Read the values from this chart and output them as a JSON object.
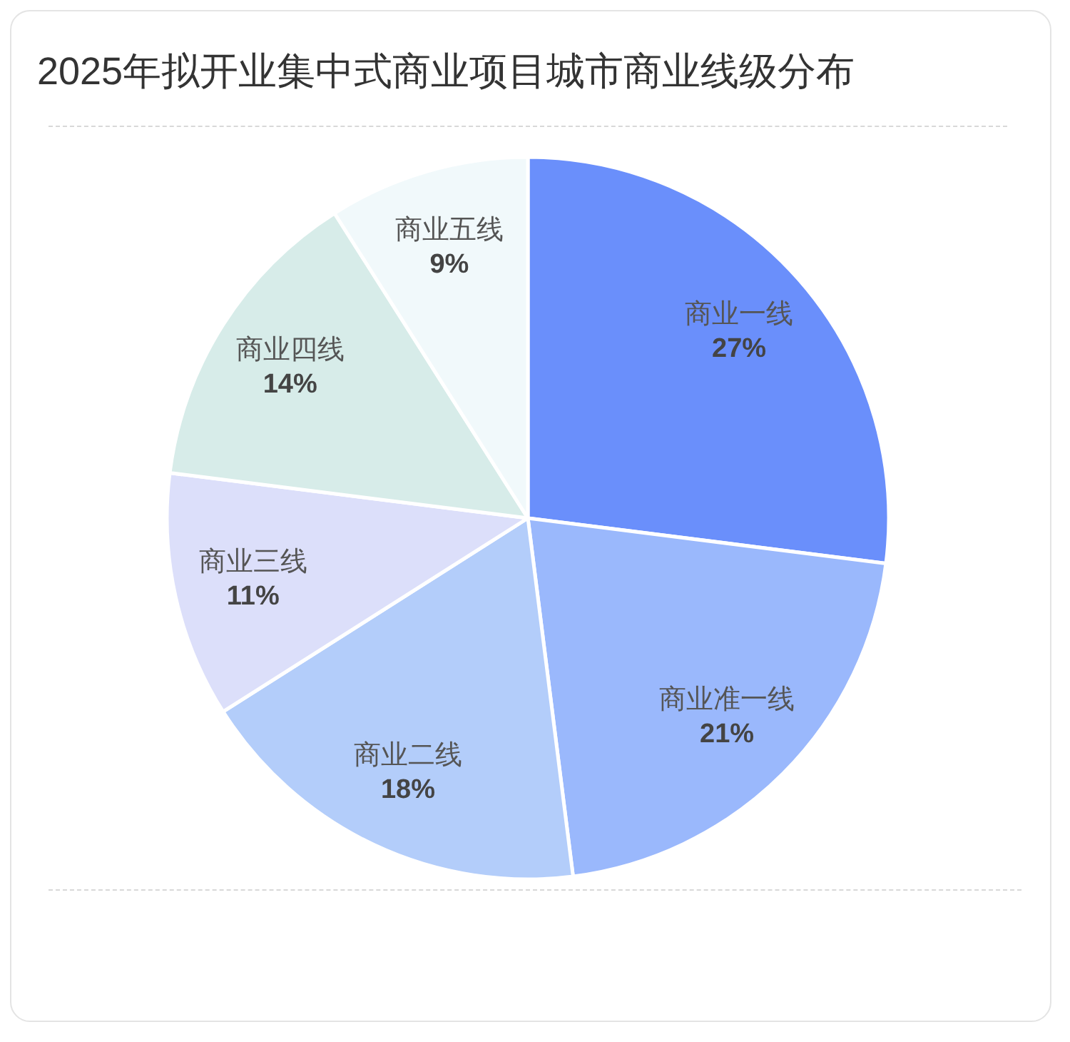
{
  "chart_data": {
    "type": "pie",
    "title": "2025年拟开业集中式商业项目城市商业线级分布",
    "categories": [
      "商业一线",
      "商业准一线",
      "商业二线",
      "商业三线",
      "商业四线",
      "商业五线"
    ],
    "values": [
      27,
      21,
      18,
      11,
      14,
      9
    ],
    "colors": [
      "#6a8ffb",
      "#9ab8fc",
      "#b3cdfa",
      "#dcdffa",
      "#d7ece9",
      "#f1f9fb"
    ],
    "value_labels": [
      "27%",
      "21%",
      "18%",
      "11%",
      "14%",
      "9%"
    ]
  }
}
